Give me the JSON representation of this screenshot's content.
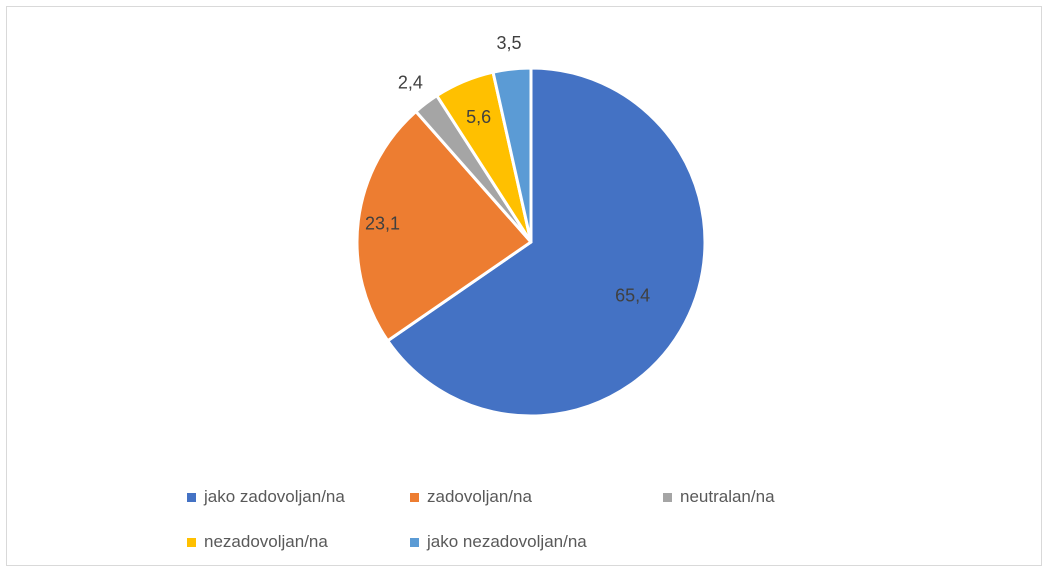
{
  "chart_data": {
    "type": "pie",
    "title": "",
    "categories": [
      "jako zadovoljan/na",
      "zadovoljan/na",
      "neutralan/na",
      "nezadovoljan/na",
      "jako nezadovoljan/na"
    ],
    "values": [
      65.4,
      23.1,
      2.4,
      5.6,
      3.5
    ],
    "data_labels": [
      "65,4",
      "23,1",
      "2,4",
      "5,6",
      "3,5"
    ],
    "colors": [
      "#4472C4",
      "#ED7D31",
      "#A5A5A5",
      "#FFC000",
      "#5B9BD5"
    ],
    "legend_position": "bottom",
    "direction": "clockwise",
    "start_angle": "top"
  }
}
